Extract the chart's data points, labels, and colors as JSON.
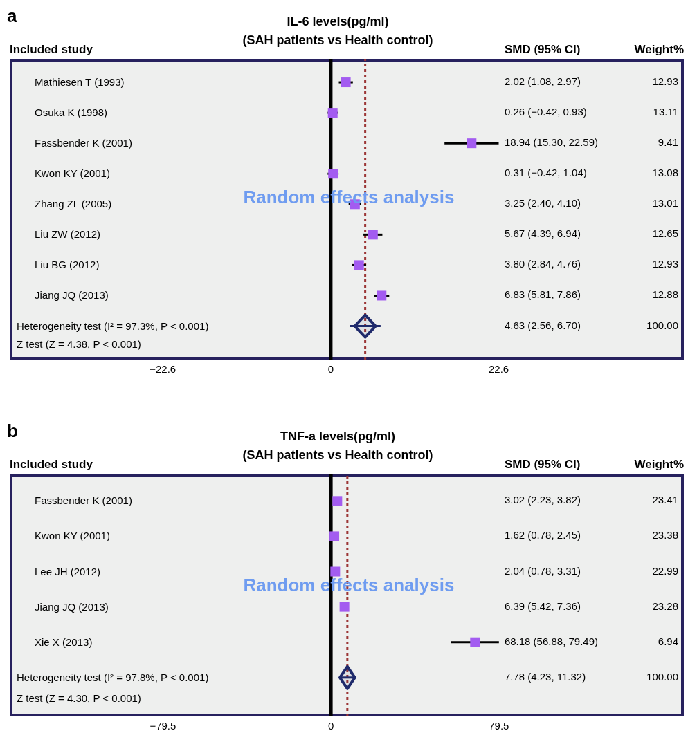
{
  "chart_data": [
    {
      "type": "scatter",
      "orientation": "horizontal",
      "title": "IL-6 levels(pg/ml)",
      "subtitle": "(SAH patients vs Health control)",
      "categories": [
        "Mathiesen T (1993)",
        "Osuka K (1998)",
        "Fassbender K (2001)",
        "Kwon KY (2001)",
        "Zhang ZL (2005)",
        "Liu ZW (2012)",
        "Liu BG (2012)",
        "Jiang JQ (2013)",
        "Heterogeneity test (I² = 97.3%, P < 0.001)"
      ],
      "series": [
        {
          "color": "#a35cf0",
          "marker": "square",
          "values": [
            2.02,
            0.26,
            18.94,
            0.31,
            3.25,
            5.67,
            3.8,
            6.83,
            null
          ],
          "errors": [
            [
              1.08,
              2.97
            ],
            [
              -0.42,
              0.93
            ],
            [
              15.3,
              22.59
            ],
            [
              -0.42,
              1.04
            ],
            [
              2.4,
              4.1
            ],
            [
              4.39,
              6.94
            ],
            [
              2.84,
              4.76
            ],
            [
              5.81,
              7.86
            ],
            null
          ]
        },
        {
          "color": "#1f2a6b",
          "marker": "diamond",
          "values": [
            null,
            null,
            null,
            null,
            null,
            null,
            null,
            null,
            4.63
          ],
          "errors": [
            null,
            null,
            null,
            null,
            null,
            null,
            null,
            null,
            [
              2.56,
              6.7
            ]
          ]
        }
      ],
      "xlim": [
        -43.2,
        47.5
      ],
      "xticks": [
        {
          "value": -22.6,
          "label": "−22.6"
        },
        0,
        22.6
      ],
      "grid": false,
      "ref_lines": [
        {
          "axis": "x",
          "value": 0,
          "color": "#000000"
        },
        {
          "axis": "x",
          "value": 4.63,
          "color": "#9b3535",
          "line_style": "dotted"
        }
      ],
      "annotations": [
        "a",
        "Included study",
        "SMD (95% CI)",
        "Weight%",
        "Random effects analysis",
        "Z test (Z = 4.38, P < 0.001)",
        "2.02 (1.08, 2.97)",
        "0.26 (−0.42, 0.93)",
        "18.94 (15.30, 22.59)",
        "0.31 (−0.42, 1.04)",
        "3.25 (2.40, 4.10)",
        "5.67 (4.39, 6.94)",
        "3.80 (2.84, 4.76)",
        "6.83 (5.81, 7.86)",
        "4.63 (2.56, 6.70)",
        "12.93",
        "13.11",
        "9.41",
        "13.08",
        "13.01",
        "12.65",
        "12.93",
        "12.88",
        "100.00"
      ]
    },
    {
      "type": "scatter",
      "orientation": "horizontal",
      "title": "TNF-a levels(pg/ml)",
      "subtitle": "(SAH patients vs Health control)",
      "categories": [
        "Fassbender K (2001)",
        "Kwon KY (2001)",
        "Lee JH (2012)",
        "Jiang JQ (2013)",
        "Xie X (2013)",
        "Heterogeneity test (I² = 97.8%, P < 0.001)"
      ],
      "series": [
        {
          "color": "#a35cf0",
          "marker": "square",
          "values": [
            3.02,
            1.62,
            2.04,
            6.39,
            68.18,
            null
          ],
          "errors": [
            [
              2.23,
              3.82
            ],
            [
              0.78,
              2.45
            ],
            [
              0.78,
              3.31
            ],
            [
              5.42,
              7.36
            ],
            [
              56.88,
              79.49
            ],
            null
          ]
        },
        {
          "color": "#1f2a6b",
          "marker": "diamond",
          "values": [
            null,
            null,
            null,
            null,
            null,
            7.78
          ],
          "errors": [
            null,
            null,
            null,
            null,
            null,
            [
              4.23,
              11.32
            ]
          ]
        }
      ],
      "xlim": [
        -152,
        167
      ],
      "xticks": [
        {
          "value": -79.5,
          "label": "−79.5"
        },
        0,
        79.5
      ],
      "grid": false,
      "ref_lines": [
        {
          "axis": "x",
          "value": 0,
          "color": "#000000"
        },
        {
          "axis": "x",
          "value": 7.78,
          "color": "#9b3535",
          "line_style": "dotted"
        }
      ],
      "annotations": [
        "b",
        "Included study",
        "SMD (95% CI)",
        "Weight%",
        "Random effects analysis",
        "Z test (Z = 4.30, P < 0.001)",
        "3.02 (2.23, 3.82)",
        "1.62 (0.78, 2.45)",
        "2.04 (0.78, 3.31)",
        "6.39 (5.42, 7.36)",
        "68.18 (56.88, 79.49)",
        "7.78 (4.23, 11.32)",
        "23.41",
        "23.38",
        "22.99",
        "23.28",
        "6.94",
        "100.00"
      ]
    }
  ]
}
